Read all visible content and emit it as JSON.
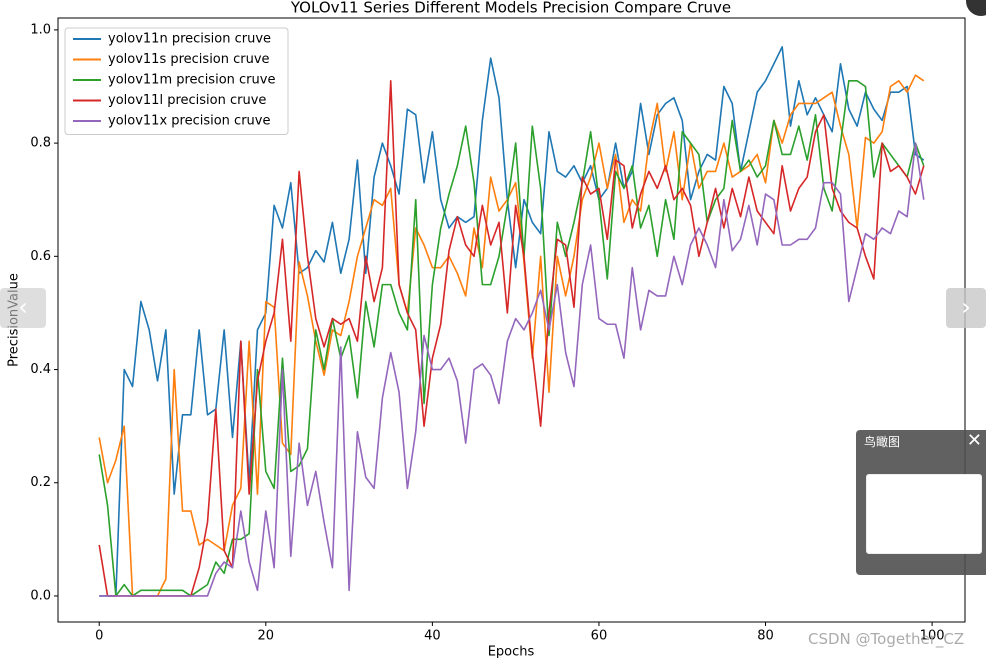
{
  "chart_data": {
    "type": "line",
    "title": "YOLOv11 Series Different Models Precision Compare Cruve",
    "x_label": "Epochs",
    "y_label": "PrecisionValue",
    "xlim": [
      -4.95,
      103.95
    ],
    "ylim": [
      -0.046,
      1.021
    ],
    "xticks": [
      0,
      20,
      40,
      60,
      80,
      100
    ],
    "yticks": [
      {
        "value": 0,
        "label": "0.0"
      },
      0.2,
      0.4,
      0.6,
      0.8,
      {
        "value": 1,
        "label": "1.0"
      }
    ],
    "legend": "upper left",
    "x": [
      0,
      1,
      2,
      3,
      4,
      5,
      6,
      7,
      8,
      9,
      10,
      11,
      12,
      13,
      14,
      15,
      16,
      17,
      18,
      19,
      20,
      21,
      22,
      23,
      24,
      25,
      26,
      27,
      28,
      29,
      30,
      31,
      32,
      33,
      34,
      35,
      36,
      37,
      38,
      39,
      40,
      41,
      42,
      43,
      44,
      45,
      46,
      47,
      48,
      49,
      50,
      51,
      52,
      53,
      54,
      55,
      56,
      57,
      58,
      59,
      60,
      61,
      62,
      63,
      64,
      65,
      66,
      67,
      68,
      69,
      70,
      71,
      72,
      73,
      74,
      75,
      76,
      77,
      78,
      79,
      80,
      81,
      82,
      83,
      84,
      85,
      86,
      87,
      88,
      89,
      90,
      91,
      92,
      93,
      94,
      95,
      96,
      97,
      98,
      99
    ],
    "series": [
      {
        "name": "yolov11n precision cruve",
        "color": "#1f77b4",
        "values": [
          0,
          0,
          0,
          0.4,
          0.37,
          0.52,
          0.47,
          0.38,
          0.47,
          0.18,
          0.32,
          0.32,
          0.47,
          0.32,
          0.33,
          0.47,
          0.28,
          0.45,
          0.2,
          0.47,
          0.5,
          0.69,
          0.65,
          0.73,
          0.57,
          0.58,
          0.61,
          0.59,
          0.66,
          0.57,
          0.63,
          0.77,
          0.57,
          0.74,
          0.8,
          0.76,
          0.71,
          0.86,
          0.85,
          0.73,
          0.82,
          0.7,
          0.65,
          0.67,
          0.66,
          0.67,
          0.84,
          0.95,
          0.88,
          0.7,
          0.58,
          0.7,
          0.66,
          0.64,
          0.82,
          0.75,
          0.74,
          0.76,
          0.73,
          0.76,
          0.7,
          0.72,
          0.8,
          0.72,
          0.75,
          0.87,
          0.78,
          0.85,
          0.87,
          0.88,
          0.84,
          0.7,
          0.75,
          0.78,
          0.77,
          0.9,
          0.87,
          0.75,
          0.82,
          0.89,
          0.91,
          0.94,
          0.97,
          0.83,
          0.91,
          0.85,
          0.88,
          0.85,
          0.82,
          0.94,
          0.86,
          0.83,
          0.89,
          0.86,
          0.84,
          0.89,
          0.89,
          0.9,
          0.78,
          0.77
        ]
      },
      {
        "name": "yolov11s precision cruve",
        "color": "#ff7f0e",
        "values": [
          0.28,
          0.2,
          0.24,
          0.3,
          0,
          0,
          0,
          0,
          0.03,
          0.4,
          0.15,
          0.15,
          0.09,
          0.1,
          0.09,
          0.08,
          0.16,
          0.19,
          0.45,
          0.18,
          0.52,
          0.51,
          0.27,
          0.25,
          0.59,
          0.53,
          0.45,
          0.39,
          0.47,
          0.46,
          0.52,
          0.6,
          0.65,
          0.7,
          0.69,
          0.72,
          0.55,
          0.5,
          0.65,
          0.62,
          0.58,
          0.58,
          0.6,
          0.57,
          0.53,
          0.65,
          0.58,
          0.74,
          0.68,
          0.7,
          0.73,
          0.59,
          0.42,
          0.6,
          0.36,
          0.6,
          0.53,
          0.6,
          0.7,
          0.74,
          0.8,
          0.72,
          0.78,
          0.66,
          0.7,
          0.68,
          0.8,
          0.87,
          0.75,
          0.82,
          0.7,
          0.8,
          0.72,
          0.75,
          0.75,
          0.8,
          0.74,
          0.75,
          0.76,
          0.78,
          0.73,
          0.84,
          0.8,
          0.85,
          0.87,
          0.87,
          0.87,
          0.88,
          0.89,
          0.83,
          0.78,
          0.65,
          0.81,
          0.8,
          0.82,
          0.9,
          0.91,
          0.89,
          0.92,
          0.91
        ]
      },
      {
        "name": "yolov11m precision cruve",
        "color": "#2ca02c",
        "values": [
          0.25,
          0.16,
          0,
          0.02,
          0,
          0.01,
          0.01,
          0.01,
          0.01,
          0.01,
          0.01,
          0,
          0.01,
          0.02,
          0.06,
          0.04,
          0.1,
          0.1,
          0.11,
          0.4,
          0.22,
          0.19,
          0.42,
          0.22,
          0.23,
          0.26,
          0.47,
          0.4,
          0.49,
          0.42,
          0.46,
          0.35,
          0.52,
          0.44,
          0.55,
          0.55,
          0.5,
          0.47,
          0.7,
          0.34,
          0.55,
          0.65,
          0.71,
          0.76,
          0.83,
          0.73,
          0.55,
          0.55,
          0.6,
          0.69,
          0.8,
          0.6,
          0.83,
          0.72,
          0.46,
          0.66,
          0.6,
          0.66,
          0.73,
          0.82,
          0.7,
          0.56,
          0.75,
          0.72,
          0.76,
          0.65,
          0.69,
          0.6,
          0.7,
          0.63,
          0.82,
          0.8,
          0.78,
          0.66,
          0.7,
          0.72,
          0.84,
          0.75,
          0.77,
          0.74,
          0.76,
          0.84,
          0.78,
          0.78,
          0.83,
          0.77,
          0.85,
          0.72,
          0.68,
          0.8,
          0.91,
          0.91,
          0.9,
          0.74,
          0.8,
          0.78,
          0.76,
          0.74,
          0.8,
          0.76
        ]
      },
      {
        "name": "yolov11l precision cruve",
        "color": "#d62728",
        "values": [
          0.09,
          0,
          0,
          0,
          0,
          0,
          0,
          0,
          0,
          0,
          0,
          0,
          0.05,
          0.13,
          0.33,
          0.08,
          0.05,
          0.45,
          0.18,
          0.38,
          0.45,
          0.5,
          0.63,
          0.45,
          0.75,
          0.6,
          0.49,
          0.44,
          0.49,
          0.48,
          0.49,
          0.45,
          0.6,
          0.52,
          0.58,
          0.91,
          0.55,
          0.5,
          0.47,
          0.3,
          0.42,
          0.48,
          0.61,
          0.67,
          0.62,
          0.6,
          0.69,
          0.62,
          0.66,
          0.5,
          0.69,
          0.6,
          0.43,
          0.3,
          0.5,
          0.63,
          0.62,
          0.51,
          0.74,
          0.71,
          0.72,
          0.63,
          0.77,
          0.76,
          0.65,
          0.71,
          0.75,
          0.72,
          0.76,
          0.7,
          0.72,
          0.69,
          0.6,
          0.66,
          0.72,
          0.65,
          0.72,
          0.67,
          0.74,
          0.68,
          0.66,
          0.64,
          0.76,
          0.68,
          0.72,
          0.74,
          0.82,
          0.85,
          0.72,
          0.68,
          0.66,
          0.65,
          0.6,
          0.56,
          0.8,
          0.75,
          0.76,
          0.74,
          0.71,
          0.76
        ]
      },
      {
        "name": "yolov11x precision cruve",
        "color": "#9467bd",
        "values": [
          0,
          0,
          0,
          0,
          0,
          0,
          0,
          0,
          0,
          0,
          0,
          0,
          0,
          0,
          0.04,
          0.06,
          0.05,
          0.15,
          0.06,
          0.01,
          0.15,
          0.05,
          0.4,
          0.07,
          0.27,
          0.16,
          0.22,
          0.13,
          0.05,
          0.44,
          0.01,
          0.29,
          0.21,
          0.19,
          0.35,
          0.43,
          0.36,
          0.19,
          0.29,
          0.46,
          0.4,
          0.4,
          0.42,
          0.38,
          0.27,
          0.4,
          0.41,
          0.39,
          0.34,
          0.45,
          0.49,
          0.47,
          0.5,
          0.54,
          0.47,
          0.55,
          0.43,
          0.37,
          0.55,
          0.62,
          0.49,
          0.48,
          0.48,
          0.42,
          0.58,
          0.47,
          0.54,
          0.53,
          0.53,
          0.6,
          0.55,
          0.62,
          0.65,
          0.62,
          0.58,
          0.7,
          0.61,
          0.63,
          0.69,
          0.62,
          0.71,
          0.7,
          0.62,
          0.62,
          0.63,
          0.63,
          0.65,
          0.73,
          0.73,
          0.71,
          0.52,
          0.58,
          0.64,
          0.63,
          0.65,
          0.64,
          0.68,
          0.67,
          0.8,
          0.7
        ]
      }
    ]
  },
  "ui": {
    "minimap_title": "鸟瞰图",
    "watermark": "CSDN @Together_CZ"
  }
}
